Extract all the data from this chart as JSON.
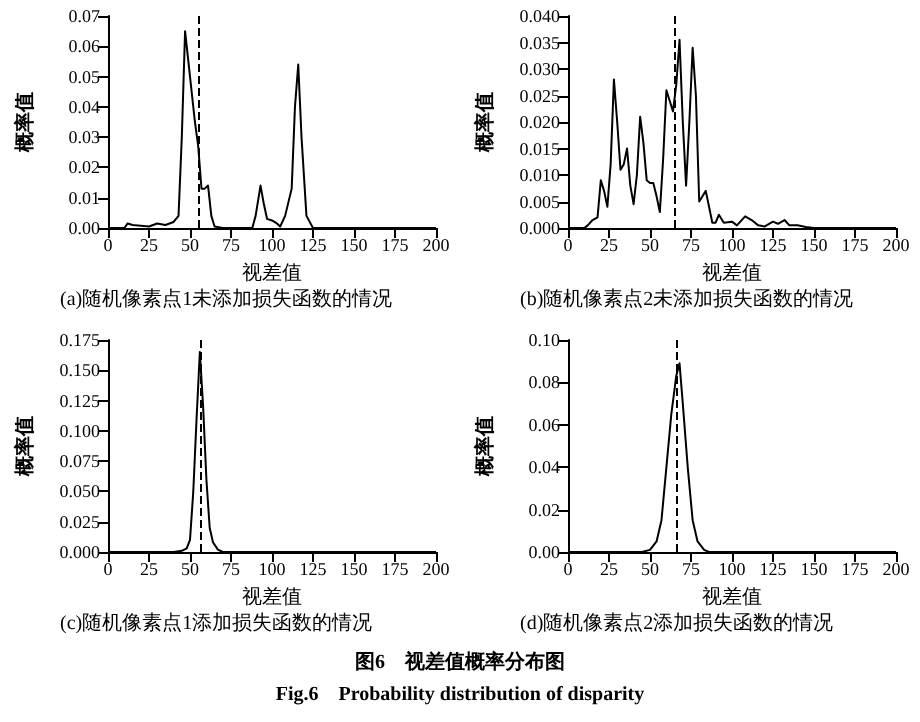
{
  "chart_data": [
    {
      "type": "line",
      "title": "(a)随机像素点1未添加损失函数的情况",
      "xlabel": "视差值",
      "ylabel": "概率值",
      "marker": "none",
      "line_style": "solid",
      "grid": false,
      "xlim": [
        0,
        200
      ],
      "xticks": [
        0,
        25,
        50,
        75,
        100,
        125,
        150,
        175,
        200
      ],
      "ylim": [
        0,
        0.07
      ],
      "yticks": [
        {
          "value": 0,
          "label": "0.00"
        },
        0.01,
        0.02,
        0.03,
        0.04,
        0.05,
        0.06,
        0.07
      ],
      "ref_lines": [
        {
          "axis": "x",
          "value": 55,
          "line_style": "dashed",
          "color": "#000000"
        }
      ],
      "series": [
        {
          "color": "#000000",
          "x": [
            0,
            10,
            12,
            15,
            25,
            30,
            35,
            40,
            43,
            45,
            47,
            50,
            53,
            55,
            57,
            59,
            61,
            63,
            65,
            70,
            88,
            90,
            93,
            95,
            97,
            100,
            103,
            105,
            108,
            112,
            114,
            116,
            118,
            121,
            125,
            200
          ],
          "values": [
            0,
            0,
            0.0015,
            0.001,
            0.0005,
            0.0015,
            0.001,
            0.002,
            0.004,
            0.03,
            0.065,
            0.05,
            0.035,
            0.027,
            0.013,
            0.013,
            0.014,
            0.004,
            0.0005,
            0,
            0,
            0.004,
            0.014,
            0.008,
            0.003,
            0.0025,
            0.0015,
            0.0005,
            0.004,
            0.013,
            0.04,
            0.054,
            0.03,
            0.004,
            0,
            0
          ]
        }
      ]
    },
    {
      "type": "line",
      "title": "(b)随机像素点2未添加损失函数的情况",
      "xlabel": "视差值",
      "ylabel": "概率值",
      "marker": "none",
      "line_style": "solid",
      "grid": false,
      "xlim": [
        0,
        200
      ],
      "xticks": [
        0,
        25,
        50,
        75,
        100,
        125,
        150,
        175,
        200
      ],
      "ylim": [
        0,
        0.04
      ],
      "yticks": [
        {
          "value": 0,
          "label": "0.000"
        },
        0.005,
        {
          "value": 0.01,
          "label": "0.010"
        },
        0.015,
        {
          "value": 0.02,
          "label": "0.020"
        },
        0.025,
        {
          "value": 0.03,
          "label": "0.030"
        },
        0.035,
        {
          "value": 0.04,
          "label": "0.040"
        }
      ],
      "ref_lines": [
        {
          "axis": "x",
          "value": 65,
          "line_style": "dashed",
          "color": "#000000"
        }
      ],
      "series": [
        {
          "color": "#000000",
          "x": [
            0,
            10,
            12,
            15,
            18,
            20,
            22,
            24,
            26,
            28,
            30,
            32,
            34,
            36,
            38,
            40,
            42,
            44,
            46,
            48,
            50,
            52,
            54,
            56,
            58,
            60,
            62,
            64,
            66,
            68,
            70,
            72,
            74,
            76,
            78,
            80,
            82,
            84,
            86,
            88,
            90,
            92,
            95,
            100,
            103,
            108,
            112,
            116,
            120,
            125,
            128,
            132,
            135,
            140,
            145,
            150,
            200
          ],
          "values": [
            0,
            0,
            0.0005,
            0.0015,
            0.002,
            0.009,
            0.007,
            0.004,
            0.012,
            0.028,
            0.02,
            0.011,
            0.012,
            0.015,
            0.008,
            0.0045,
            0.01,
            0.021,
            0.016,
            0.009,
            0.0085,
            0.0085,
            0.006,
            0.003,
            0.013,
            0.026,
            0.024,
            0.022,
            0.027,
            0.0355,
            0.02,
            0.008,
            0.02,
            0.034,
            0.025,
            0.005,
            0.006,
            0.007,
            0.004,
            0.001,
            0.001,
            0.0025,
            0.001,
            0.0012,
            0.0005,
            0.0022,
            0.0015,
            0.0005,
            0.0003,
            0.0012,
            0.0008,
            0.0015,
            0.0005,
            0.0005,
            0.0002,
            0,
            0
          ]
        }
      ]
    },
    {
      "type": "line",
      "title": "(c)随机像素点1添加损失函数的情况",
      "xlabel": "视差值",
      "ylabel": "概率值",
      "marker": "none",
      "line_style": "solid",
      "grid": false,
      "xlim": [
        0,
        200
      ],
      "xticks": [
        0,
        25,
        50,
        75,
        100,
        125,
        150,
        175,
        200
      ],
      "ylim": [
        0,
        0.175
      ],
      "yticks": [
        {
          "value": 0,
          "label": "0.000"
        },
        0.025,
        {
          "value": 0.05,
          "label": "0.050"
        },
        0.075,
        {
          "value": 0.1,
          "label": "0.100"
        },
        0.125,
        {
          "value": 0.15,
          "label": "0.150"
        },
        0.175
      ],
      "ref_lines": [
        {
          "axis": "x",
          "value": 56,
          "line_style": "dashed",
          "color": "#000000"
        }
      ],
      "series": [
        {
          "color": "#000000",
          "x": [
            0,
            40,
            45,
            48,
            50,
            52,
            54,
            56,
            58,
            60,
            62,
            64,
            67,
            70,
            200
          ],
          "values": [
            0,
            0,
            0.001,
            0.003,
            0.01,
            0.05,
            0.11,
            0.165,
            0.12,
            0.06,
            0.02,
            0.008,
            0.002,
            0,
            0
          ]
        }
      ]
    },
    {
      "type": "line",
      "title": "(d)随机像素点2添加损失函数的情况",
      "xlabel": "视差值",
      "ylabel": "概率值",
      "marker": "none",
      "line_style": "solid",
      "grid": false,
      "xlim": [
        0,
        200
      ],
      "xticks": [
        0,
        25,
        50,
        75,
        100,
        125,
        150,
        175,
        200
      ],
      "ylim": [
        0,
        0.1
      ],
      "yticks": [
        {
          "value": 0,
          "label": "0.00"
        },
        0.02,
        0.04,
        0.06,
        0.08,
        {
          "value": 0.1,
          "label": "0.10"
        }
      ],
      "ref_lines": [
        {
          "axis": "x",
          "value": 66,
          "line_style": "dashed",
          "color": "#000000"
        }
      ],
      "annotations": [
        "图6　视差值概率分布图",
        "Fig.6　Probability distribution of disparity"
      ],
      "series": [
        {
          "color": "#000000",
          "x": [
            0,
            45,
            50,
            54,
            57,
            60,
            63,
            66,
            68,
            70,
            73,
            76,
            79,
            83,
            86,
            200
          ],
          "values": [
            0,
            0,
            0.001,
            0.005,
            0.015,
            0.04,
            0.065,
            0.083,
            0.089,
            0.07,
            0.04,
            0.015,
            0.005,
            0.001,
            0,
            0
          ]
        }
      ]
    }
  ]
}
